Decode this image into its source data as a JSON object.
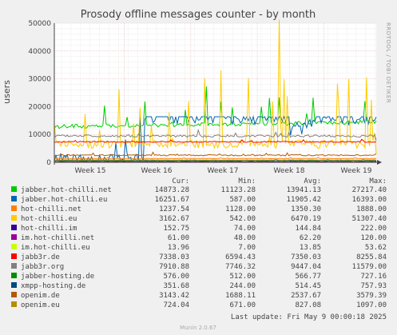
{
  "chart_data": {
    "type": "line",
    "title": "Prosody offline messages counter - by month",
    "ylabel": "users",
    "xlabel": "",
    "watermark": "RRDTOOL / TOBI OETIKER",
    "x_ticks": [
      "Week 15",
      "Week 16",
      "Week 17",
      "Week 18",
      "Week 19"
    ],
    "y_ticks": [
      "0",
      "10000",
      "20000",
      "30000",
      "40000",
      "50000"
    ],
    "ylim": [
      0,
      50000
    ],
    "grid": true,
    "legend_placement": "bottom",
    "legend_headers": {
      "cur": "Cur:",
      "min": "Min:",
      "avg": "Avg:",
      "max": "Max:"
    },
    "series": [
      {
        "name": "jabber.hot-chilli.net",
        "color": "#00cc00",
        "cur": "14873.28",
        "min": "11123.28",
        "avg": "13941.13",
        "max": "27217.40"
      },
      {
        "name": "jabber.hot-chilli.eu",
        "color": "#0066b3",
        "cur": "16251.67",
        "min": "587.00",
        "avg": "11905.42",
        "max": "16393.00"
      },
      {
        "name": "hot-chilli.net",
        "color": "#ff8000",
        "cur": "1237.54",
        "min": "1128.00",
        "avg": "1350.30",
        "max": "1888.00"
      },
      {
        "name": "hot-chilli.eu",
        "color": "#ffcc00",
        "cur": "3162.67",
        "min": "542.00",
        "avg": "6470.19",
        "max": "51307.40"
      },
      {
        "name": "hot-chilli.im",
        "color": "#330099",
        "cur": "152.75",
        "min": "74.00",
        "avg": "144.84",
        "max": "222.00"
      },
      {
        "name": "im.hot-chilli.net",
        "color": "#990099",
        "cur": "61.00",
        "min": "48.00",
        "avg": "62.20",
        "max": "120.00"
      },
      {
        "name": "im.hot-chilli.eu",
        "color": "#ccff00",
        "cur": "13.96",
        "min": "7.00",
        "avg": "13.85",
        "max": "53.62"
      },
      {
        "name": "jabb3r.de",
        "color": "#ff0000",
        "cur": "7338.03",
        "min": "6594.43",
        "avg": "7350.03",
        "max": "8255.84"
      },
      {
        "name": "jabb3r.org",
        "color": "#808080",
        "cur": "7910.88",
        "min": "7746.32",
        "avg": "9447.04",
        "max": "11579.00"
      },
      {
        "name": "jabber-hosting.de",
        "color": "#008f00",
        "cur": "576.00",
        "min": "512.00",
        "avg": "566.77",
        "max": "727.16"
      },
      {
        "name": "xmpp-hosting.de",
        "color": "#00487d",
        "cur": "351.68",
        "min": "244.00",
        "avg": "514.45",
        "max": "757.93"
      },
      {
        "name": "openim.de",
        "color": "#b35a00",
        "cur": "3143.42",
        "min": "1688.11",
        "avg": "2537.67",
        "max": "3579.39"
      },
      {
        "name": "openim.eu",
        "color": "#b38f00",
        "cur": "724.04",
        "min": "671.00",
        "avg": "827.08",
        "max": "1097.00"
      }
    ]
  },
  "footer": {
    "last_update": "Last update: Fri May  9 00:00:18 2025",
    "version": "Munin 2.0.67"
  }
}
